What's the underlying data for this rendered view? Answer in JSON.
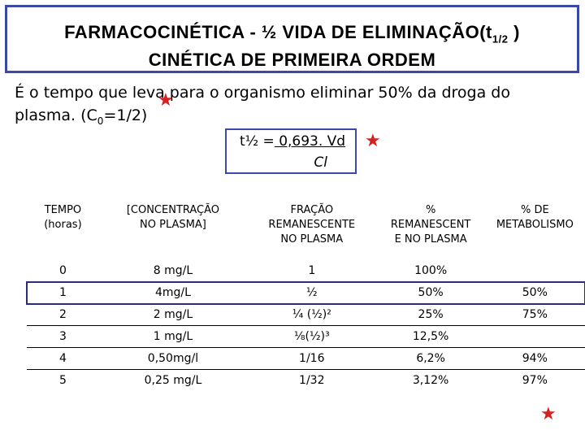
{
  "title": {
    "line1_prefix": "FARMACOCINÉTICA -  ½ VIDA DE ELIMINAÇÃO(t",
    "line1_subscript": "1/2",
    "line1_suffix": " )",
    "line2": "CINÉTICA DE PRIMEIRA ORDEM"
  },
  "definition": {
    "text": "É o tempo que leva para o organismo eliminar 50% da droga do plasma. (C",
    "subscript": "0",
    "suffix": "=1/2)"
  },
  "formula": {
    "lhs": "t½ =",
    "numerator": " 0,693. Vd",
    "denominator": "Cl"
  },
  "table": {
    "headers": [
      [
        "TEMPO",
        "(horas)"
      ],
      [
        "[CONCENTRAÇÃO",
        "NO PLASMA]"
      ],
      [
        "FRAÇÃO",
        "REMANESCENTE",
        "NO PLASMA"
      ],
      [
        "%",
        "REMANESCENT",
        "E NO PLASMA"
      ],
      [
        "% DE",
        "METABOLISMO"
      ]
    ],
    "rows": [
      [
        "0",
        "8 mg/L",
        "1",
        "100%",
        ""
      ],
      [
        "1",
        "4mg/L",
        "½",
        "50%",
        "50%"
      ],
      [
        "2",
        "2 mg/L",
        "¼ (½)²",
        "25%",
        "75%"
      ],
      [
        "3",
        "1 mg/L",
        "⅛(½)³",
        "12,5%",
        ""
      ],
      [
        "4",
        "0,50mg/l",
        "1/16",
        "6,2%",
        "94%"
      ],
      [
        "5",
        "0,25 mg/L",
        "1/32",
        "3,12%",
        "97%"
      ]
    ]
  },
  "colors": {
    "frame": "#3b4aa8",
    "star": "#d42020"
  },
  "icons": [
    "star-icon"
  ]
}
